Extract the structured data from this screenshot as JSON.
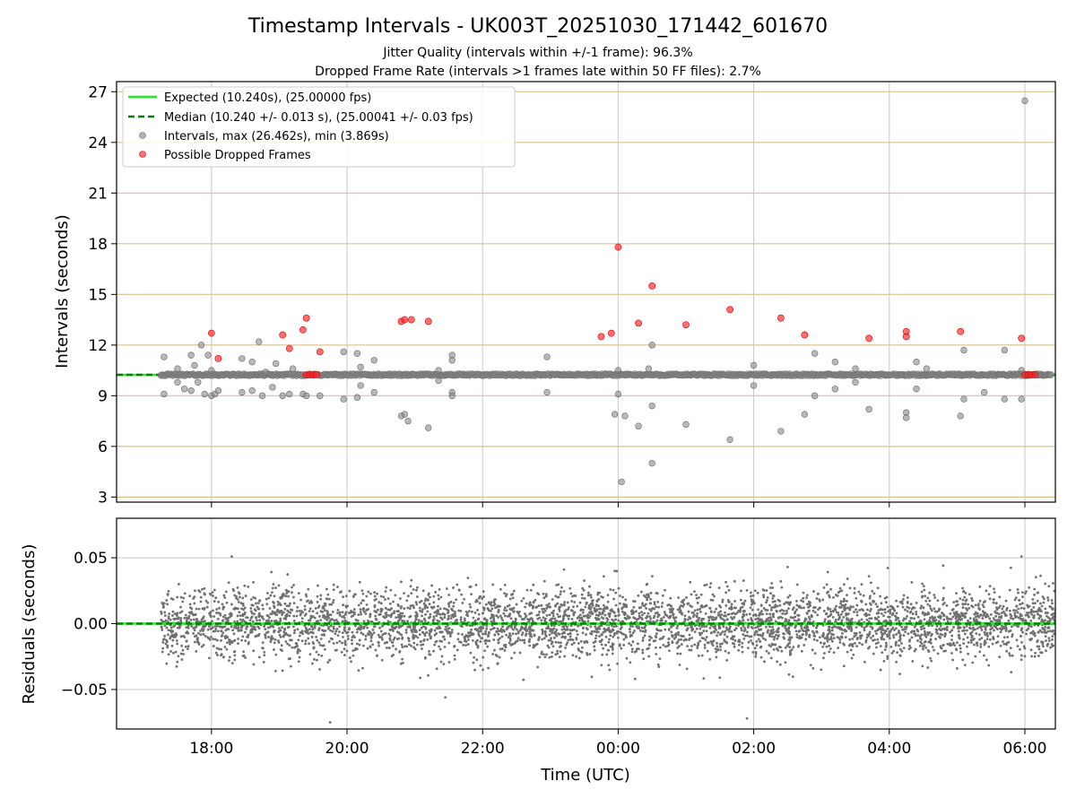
{
  "chart_data": [
    {
      "type": "scatter",
      "title": "Timestamp Intervals - UK003T_20251030_171442_601670",
      "subtitle_lines": [
        "Jitter Quality (intervals within +/-1 frame): 96.3%",
        "Dropped Frame Rate (intervals >1 frames late within 50 FF files): 2.7%"
      ],
      "xlabel": "",
      "ylabel": "Intervals (seconds)",
      "xlim": [
        16.6,
        30.45
      ],
      "ylim": [
        2.7,
        27.6
      ],
      "x_ticks": [
        18,
        20,
        22,
        24,
        26,
        28,
        30
      ],
      "x_ticklabels": [
        "18:00",
        "20:00",
        "22:00",
        "00:00",
        "02:00",
        "04:00",
        "06:00"
      ],
      "y_ticks": [
        3,
        6,
        9,
        12,
        15,
        18,
        21,
        24,
        27
      ],
      "y_ticklabels": [
        "3",
        "6",
        "9",
        "12",
        "15",
        "18",
        "21",
        "24",
        "27"
      ],
      "grid": "on",
      "legend_position": "top-left",
      "legend": [
        "Expected (10.240s), (25.00000 fps)",
        "Median (10.240 +/- 0.013 s), (25.00041 +/- 0.03 fps)",
        "Intervals, max (26.462s), min (3.869s)",
        "Possible Dropped Frames"
      ],
      "expected_value": 10.24,
      "median_value": 10.24,
      "interval_range": [
        17.25,
        30.4
      ],
      "interval_outliers": [
        {
          "x": 17.3,
          "y": 11.3
        },
        {
          "x": 17.3,
          "y": 9.1
        },
        {
          "x": 17.5,
          "y": 10.6
        },
        {
          "x": 17.5,
          "y": 9.8
        },
        {
          "x": 17.6,
          "y": 9.4
        },
        {
          "x": 17.7,
          "y": 11.4
        },
        {
          "x": 17.7,
          "y": 9.3
        },
        {
          "x": 17.75,
          "y": 10.8
        },
        {
          "x": 17.8,
          "y": 9.8
        },
        {
          "x": 17.85,
          "y": 12.0
        },
        {
          "x": 17.9,
          "y": 9.1
        },
        {
          "x": 17.95,
          "y": 11.4
        },
        {
          "x": 18.0,
          "y": 9.0
        },
        {
          "x": 18.0,
          "y": 10.5
        },
        {
          "x": 18.05,
          "y": 9.1
        },
        {
          "x": 18.1,
          "y": 9.3
        },
        {
          "x": 18.45,
          "y": 11.2
        },
        {
          "x": 18.45,
          "y": 9.2
        },
        {
          "x": 18.6,
          "y": 11.0
        },
        {
          "x": 18.6,
          "y": 9.3
        },
        {
          "x": 18.7,
          "y": 12.2
        },
        {
          "x": 18.75,
          "y": 9.0
        },
        {
          "x": 18.8,
          "y": 10.4
        },
        {
          "x": 18.9,
          "y": 9.5
        },
        {
          "x": 18.95,
          "y": 10.9
        },
        {
          "x": 19.05,
          "y": 9.0
        },
        {
          "x": 19.15,
          "y": 9.1
        },
        {
          "x": 19.2,
          "y": 10.6
        },
        {
          "x": 19.35,
          "y": 9.1
        },
        {
          "x": 19.4,
          "y": 9.0
        },
        {
          "x": 19.6,
          "y": 9.0
        },
        {
          "x": 19.95,
          "y": 11.6
        },
        {
          "x": 19.95,
          "y": 8.8
        },
        {
          "x": 20.15,
          "y": 11.5
        },
        {
          "x": 20.15,
          "y": 8.9
        },
        {
          "x": 20.2,
          "y": 10.7
        },
        {
          "x": 20.2,
          "y": 9.6
        },
        {
          "x": 20.4,
          "y": 11.1
        },
        {
          "x": 20.4,
          "y": 9.2
        },
        {
          "x": 20.8,
          "y": 7.8
        },
        {
          "x": 20.85,
          "y": 7.9
        },
        {
          "x": 20.9,
          "y": 7.5
        },
        {
          "x": 21.2,
          "y": 7.1
        },
        {
          "x": 21.35,
          "y": 10.5
        },
        {
          "x": 21.35,
          "y": 9.9
        },
        {
          "x": 21.55,
          "y": 11.4
        },
        {
          "x": 21.55,
          "y": 11.1
        },
        {
          "x": 21.55,
          "y": 9.2
        },
        {
          "x": 21.55,
          "y": 9.0
        },
        {
          "x": 22.95,
          "y": 11.3
        },
        {
          "x": 22.95,
          "y": 9.2
        },
        {
          "x": 23.95,
          "y": 7.9
        },
        {
          "x": 24.1,
          "y": 7.8
        },
        {
          "x": 24.0,
          "y": 10.5
        },
        {
          "x": 24.0,
          "y": 9.1
        },
        {
          "x": 24.05,
          "y": 3.9
        },
        {
          "x": 24.3,
          "y": 7.2
        },
        {
          "x": 24.45,
          "y": 10.6
        },
        {
          "x": 24.5,
          "y": 12.0
        },
        {
          "x": 24.5,
          "y": 8.4
        },
        {
          "x": 24.5,
          "y": 5.0
        },
        {
          "x": 25.0,
          "y": 7.3
        },
        {
          "x": 25.65,
          "y": 6.4
        },
        {
          "x": 26.0,
          "y": 10.8
        },
        {
          "x": 26.0,
          "y": 9.6
        },
        {
          "x": 26.4,
          "y": 6.9
        },
        {
          "x": 26.75,
          "y": 7.9
        },
        {
          "x": 26.9,
          "y": 11.5
        },
        {
          "x": 26.9,
          "y": 9.0
        },
        {
          "x": 27.2,
          "y": 11.0
        },
        {
          "x": 27.2,
          "y": 9.4
        },
        {
          "x": 27.5,
          "y": 10.6
        },
        {
          "x": 27.5,
          "y": 9.8
        },
        {
          "x": 27.7,
          "y": 8.2
        },
        {
          "x": 28.25,
          "y": 8.0
        },
        {
          "x": 28.25,
          "y": 7.7
        },
        {
          "x": 28.4,
          "y": 11.0
        },
        {
          "x": 28.4,
          "y": 9.4
        },
        {
          "x": 28.55,
          "y": 10.6
        },
        {
          "x": 29.05,
          "y": 7.8
        },
        {
          "x": 29.1,
          "y": 11.7
        },
        {
          "x": 29.1,
          "y": 8.8
        },
        {
          "x": 29.4,
          "y": 9.2
        },
        {
          "x": 29.7,
          "y": 11.7
        },
        {
          "x": 29.7,
          "y": 8.8
        },
        {
          "x": 29.95,
          "y": 8.8
        },
        {
          "x": 29.95,
          "y": 10.5
        },
        {
          "x": 30.0,
          "y": 26.462
        }
      ],
      "dropped_frames": [
        {
          "x": 18.0,
          "y": 12.7
        },
        {
          "x": 18.1,
          "y": 11.2
        },
        {
          "x": 19.05,
          "y": 12.6
        },
        {
          "x": 19.15,
          "y": 11.8
        },
        {
          "x": 19.35,
          "y": 12.9
        },
        {
          "x": 19.4,
          "y": 13.6
        },
        {
          "x": 19.6,
          "y": 11.6
        },
        {
          "x": 20.8,
          "y": 13.4
        },
        {
          "x": 20.85,
          "y": 13.5
        },
        {
          "x": 20.95,
          "y": 13.5
        },
        {
          "x": 21.2,
          "y": 13.4
        },
        {
          "x": 23.75,
          "y": 12.5
        },
        {
          "x": 23.9,
          "y": 12.7
        },
        {
          "x": 24.0,
          "y": 17.8
        },
        {
          "x": 24.3,
          "y": 13.3
        },
        {
          "x": 24.5,
          "y": 15.5
        },
        {
          "x": 25.0,
          "y": 13.2
        },
        {
          "x": 25.65,
          "y": 14.1
        },
        {
          "x": 26.4,
          "y": 13.6
        },
        {
          "x": 26.75,
          "y": 12.6
        },
        {
          "x": 27.7,
          "y": 12.4
        },
        {
          "x": 28.25,
          "y": 12.8
        },
        {
          "x": 28.25,
          "y": 12.5
        },
        {
          "x": 29.05,
          "y": 12.8
        },
        {
          "x": 29.95,
          "y": 12.4
        },
        {
          "x": 19.4,
          "y": 10.24
        },
        {
          "x": 19.45,
          "y": 10.24
        },
        {
          "x": 19.5,
          "y": 10.24
        },
        {
          "x": 19.55,
          "y": 10.24
        },
        {
          "x": 30.0,
          "y": 10.24
        },
        {
          "x": 30.05,
          "y": 10.24
        },
        {
          "x": 30.1,
          "y": 10.24
        },
        {
          "x": 30.15,
          "y": 10.24
        }
      ]
    },
    {
      "type": "scatter",
      "title": "",
      "xlabel": "Time (UTC)",
      "ylabel": "Residuals (seconds)",
      "xlim": [
        16.6,
        30.45
      ],
      "ylim": [
        -0.08,
        0.08
      ],
      "x_ticks": [
        18,
        20,
        22,
        24,
        26,
        28,
        30
      ],
      "x_ticklabels": [
        "18:00",
        "20:00",
        "22:00",
        "00:00",
        "02:00",
        "04:00",
        "06:00"
      ],
      "y_ticks": [
        0.05,
        0.0,
        -0.05
      ],
      "y_ticklabels": [
        "0.05",
        "0.00",
        "−0.05"
      ],
      "grid": "on",
      "zero_line": 0.0,
      "residual_count": 4600,
      "residual_spread_sd": 0.013,
      "residual_range": [
        17.25,
        30.45
      ],
      "residual_outliers": [
        {
          "x": 18.3,
          "y": 0.051
        },
        {
          "x": 19.75,
          "y": -0.075
        },
        {
          "x": 21.45,
          "y": -0.056
        },
        {
          "x": 24.25,
          "y": -0.042
        },
        {
          "x": 25.5,
          "y": -0.041
        },
        {
          "x": 25.9,
          "y": -0.072
        },
        {
          "x": 26.5,
          "y": 0.043
        },
        {
          "x": 29.95,
          "y": 0.051
        },
        {
          "x": 29.0,
          "y": -0.034
        },
        {
          "x": 27.7,
          "y": 0.036
        },
        {
          "x": 23.95,
          "y": 0.04
        },
        {
          "x": 23.2,
          "y": 0.041
        }
      ]
    }
  ]
}
